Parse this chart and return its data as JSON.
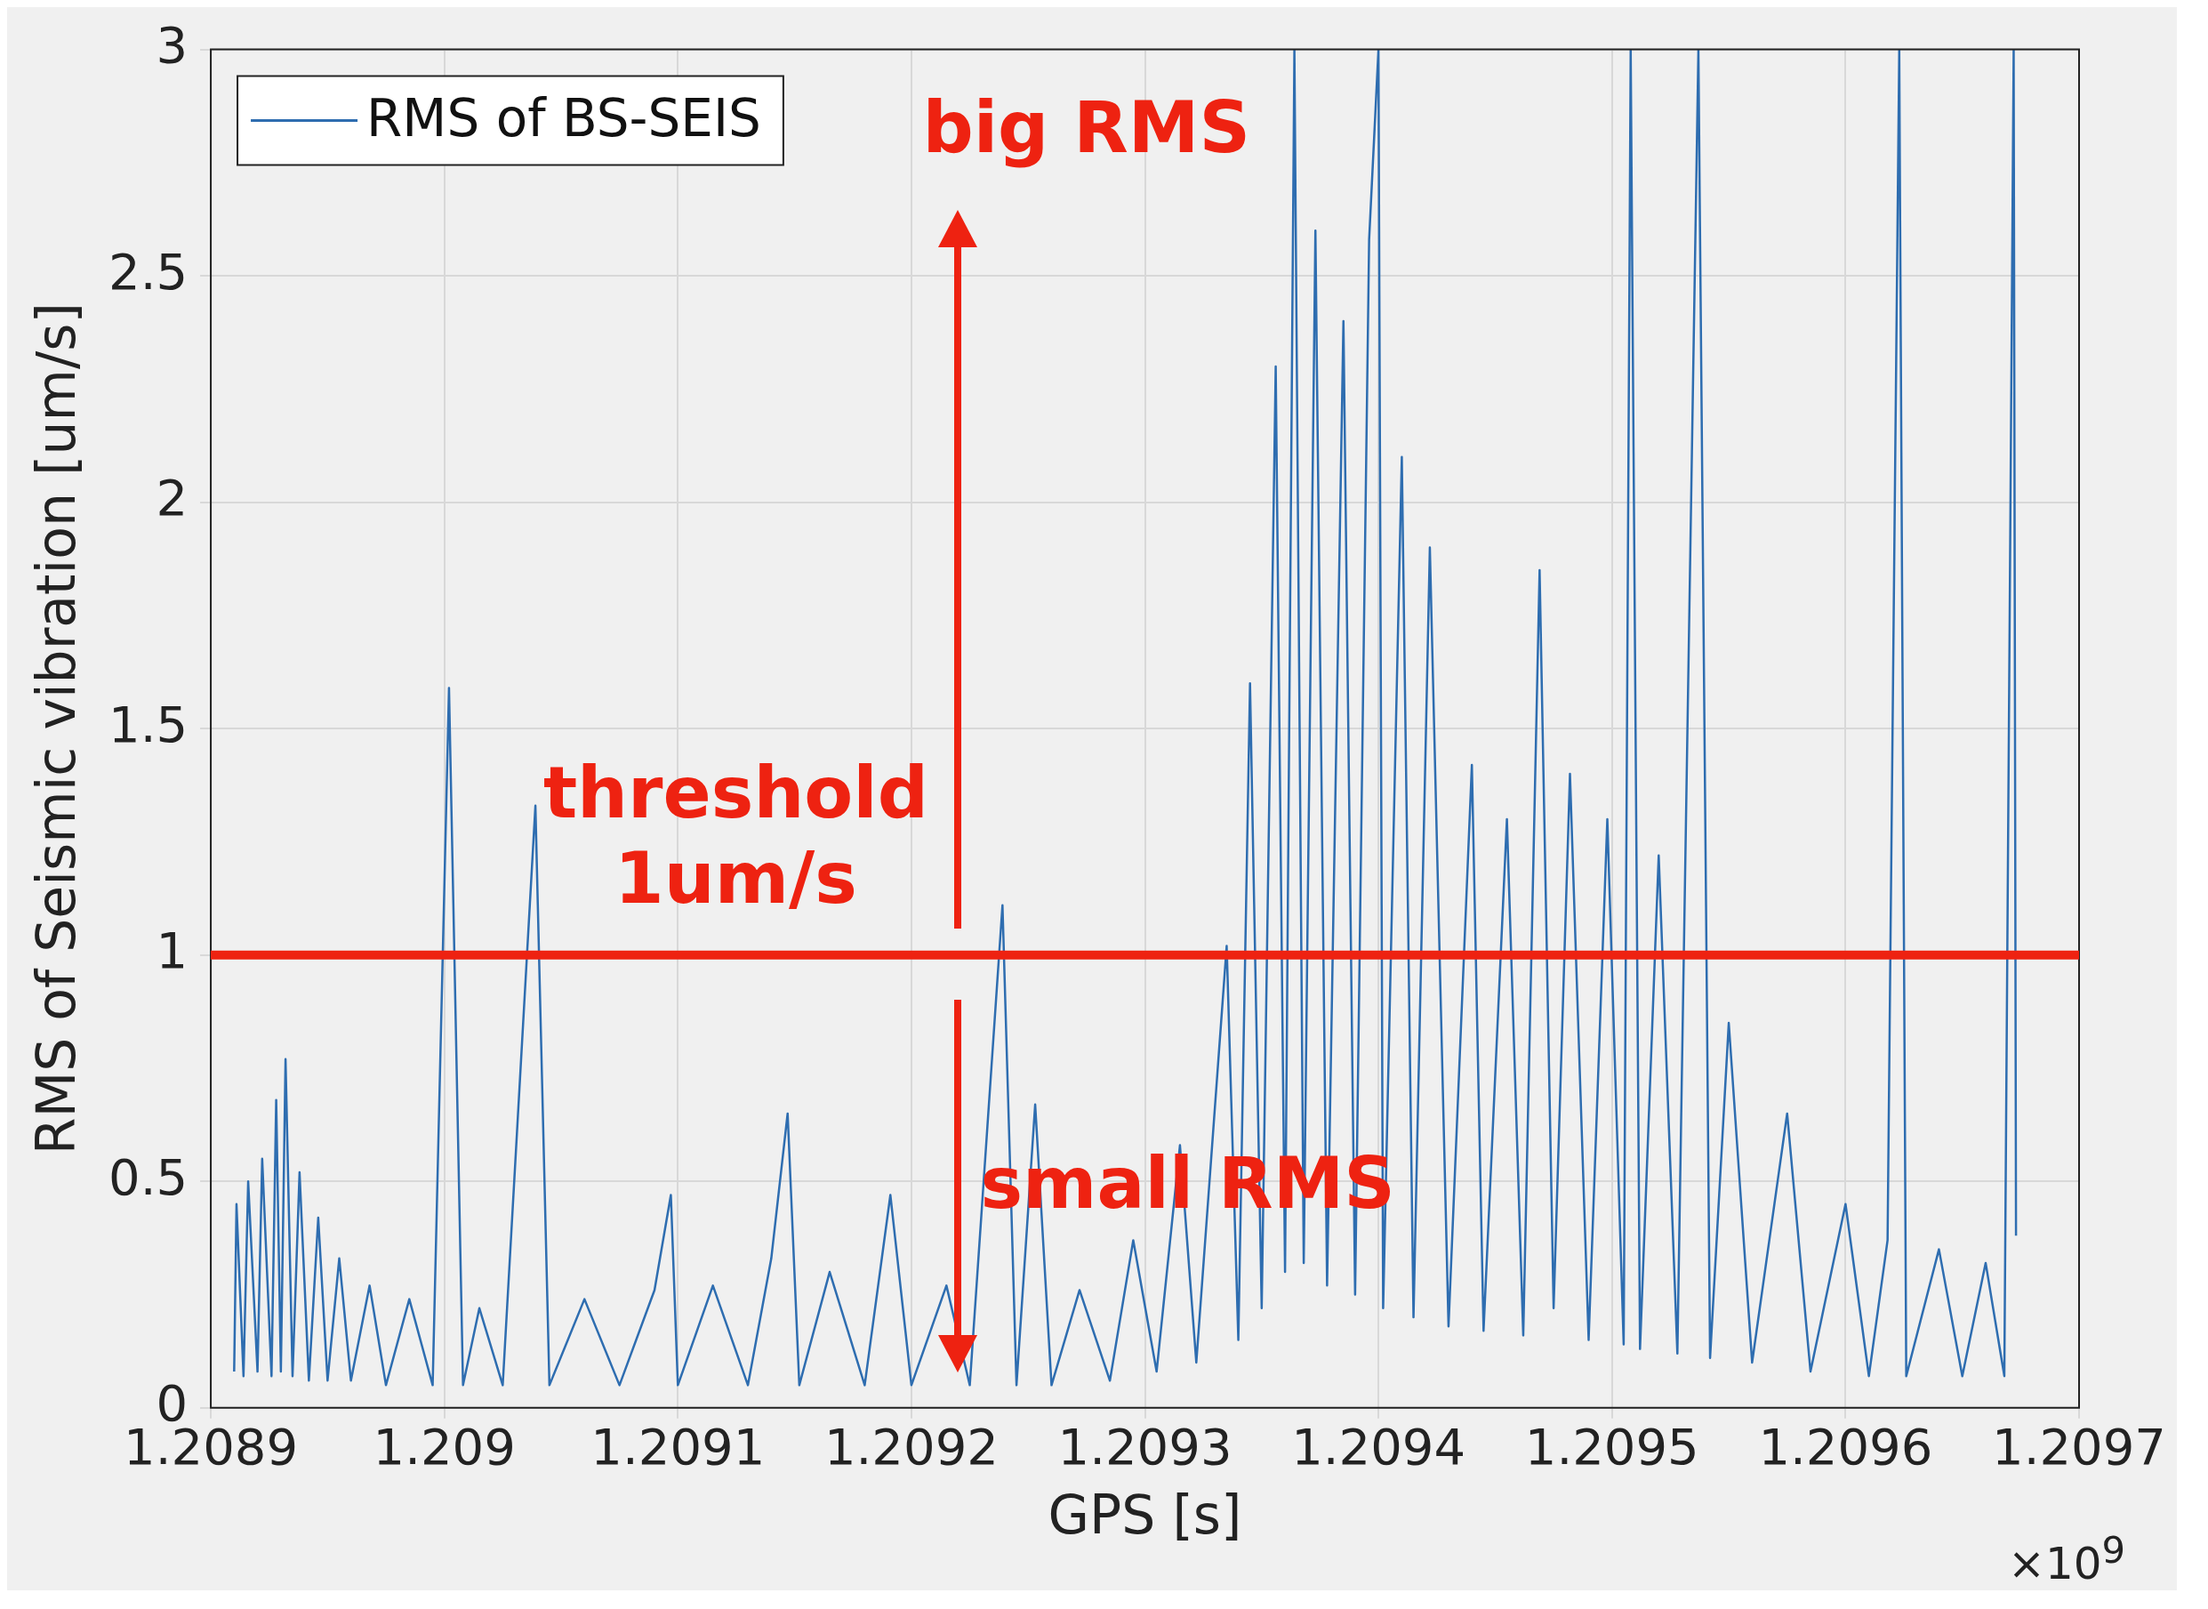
{
  "chart_data": {
    "type": "line",
    "xlabel": "GPS [s]",
    "ylabel": "RMS of Seismic vibration [um/s]",
    "xlim": [
      1.2089,
      1.2097
    ],
    "xticks": [
      1.2089,
      1.209,
      1.2091,
      1.2092,
      1.2093,
      1.2094,
      1.2095,
      1.2096,
      1.2097
    ],
    "ylim": [
      0,
      3
    ],
    "yticks": [
      0,
      0.5,
      1,
      1.5,
      2,
      2.5,
      3
    ],
    "grid": true,
    "legend": "top left",
    "marker": "none",
    "annotations": [
      "big RMS",
      "small RMS",
      "×10$^{9}$"
    ],
    "ref_lines": [
      {
        "axis": "y",
        "value": 1,
        "label": "threshold 1um/s",
        "color": "#ee2211"
      }
    ],
    "series": [
      {
        "name": "RMS of BS-SEIS",
        "color": "#2e6db0",
        "x": [
          1.20891,
          1.208911,
          1.208914,
          1.208916,
          1.20892,
          1.208922,
          1.208926,
          1.208928,
          1.20893,
          1.208932,
          1.208935,
          1.208938,
          1.208942,
          1.208946,
          1.20895,
          1.208955,
          1.20896,
          1.208968,
          1.208975,
          1.208985,
          1.208995,
          1.209002,
          1.209008,
          1.209015,
          1.209025,
          1.209039,
          1.209045,
          1.20906,
          1.209075,
          1.20909,
          1.209097,
          1.2091,
          1.209115,
          1.20913,
          1.20914,
          1.209147,
          1.209152,
          1.209165,
          1.20918,
          1.209191,
          1.2092,
          1.209215,
          1.209225,
          1.209239,
          1.209245,
          1.209253,
          1.20926,
          1.209272,
          1.209285,
          1.209295,
          1.209305,
          1.209315,
          1.209322,
          1.209335,
          1.20934,
          1.209345,
          1.20935,
          1.209356,
          1.20936,
          1.209364,
          1.209368,
          1.209373,
          1.209378,
          1.209385,
          1.20939,
          1.209396,
          1.2094,
          1.209402,
          1.20941,
          1.209415,
          1.209422,
          1.20943,
          1.20944,
          1.209445,
          1.209455,
          1.209462,
          1.209469,
          1.209475,
          1.209482,
          1.20949,
          1.209498,
          1.209505,
          1.209508,
          1.209512,
          1.20952,
          1.209528,
          1.209537,
          1.209542,
          1.20955,
          1.20956,
          1.209575,
          1.209585,
          1.2096,
          1.20961,
          1.209618,
          1.209623,
          1.209626,
          1.20964,
          1.20965,
          1.20966,
          1.209668,
          1.209672,
          1.209673
        ],
        "values": [
          0.08,
          0.45,
          0.07,
          0.5,
          0.08,
          0.55,
          0.07,
          0.68,
          0.08,
          0.77,
          0.07,
          0.52,
          0.06,
          0.42,
          0.06,
          0.33,
          0.06,
          0.27,
          0.05,
          0.24,
          0.05,
          1.59,
          0.05,
          0.22,
          0.05,
          1.33,
          0.05,
          0.24,
          0.05,
          0.26,
          0.47,
          0.05,
          0.27,
          0.05,
          0.33,
          0.65,
          0.05,
          0.3,
          0.05,
          0.47,
          0.05,
          0.27,
          0.05,
          1.11,
          0.05,
          0.67,
          0.05,
          0.26,
          0.06,
          0.37,
          0.08,
          0.58,
          0.1,
          1.02,
          0.15,
          1.6,
          0.22,
          2.3,
          0.3,
          3,
          0.32,
          2.6,
          0.27,
          2.4,
          0.25,
          2.58,
          3,
          0.22,
          2.1,
          0.2,
          1.9,
          0.18,
          1.42,
          0.17,
          1.3,
          0.16,
          1.85,
          0.22,
          1.4,
          0.15,
          1.3,
          0.14,
          3,
          0.13,
          1.22,
          0.12,
          3,
          0.11,
          0.85,
          0.1,
          0.65,
          0.08,
          0.45,
          0.07,
          0.37,
          3,
          0.07,
          0.35,
          0.07,
          0.32,
          0.07,
          3,
          0.38
        ]
      }
    ]
  }
}
